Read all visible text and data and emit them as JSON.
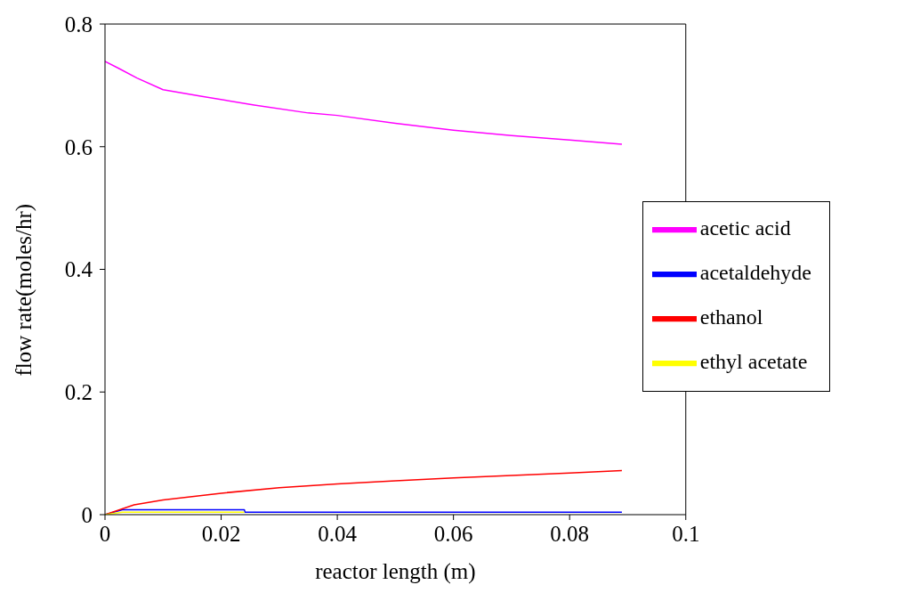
{
  "chart_data": {
    "type": "line",
    "xlabel": "reactor length (m)",
    "ylabel": "flow rate(moles/hr)",
    "xlim": [
      0,
      0.1
    ],
    "xticks": [
      0,
      0.02,
      0.04,
      0.06,
      0.08,
      0.1
    ],
    "ylim": [
      0,
      0.8
    ],
    "yticks": [
      0,
      0.2,
      0.4,
      0.6,
      0.8
    ],
    "grid": false,
    "legend": "right",
    "marker": "none",
    "line_style": "solid",
    "series": [
      {
        "name": "acetic acid",
        "color": "#ff00ff",
        "x": [
          0,
          0.0025,
          0.0055,
          0.01,
          0.0167,
          0.0257,
          0.035,
          0.04,
          0.05,
          0.06,
          0.07,
          0.08,
          0.089
        ],
        "values": [
          0.739,
          0.727,
          0.712,
          0.693,
          0.682,
          0.668,
          0.655,
          0.651,
          0.638,
          0.627,
          0.618,
          0.611,
          0.604
        ]
      },
      {
        "name": "acetaldehyde",
        "color": "#0000ff",
        "x": [
          0,
          0.003,
          0.024,
          0.0241,
          0.089
        ],
        "values": [
          0,
          0.008,
          0.008,
          0.004,
          0.004
        ]
      },
      {
        "name": "ethanol",
        "color": "#ff0000",
        "x": [
          0,
          0.005,
          0.01,
          0.02,
          0.03,
          0.04,
          0.05,
          0.06,
          0.07,
          0.08,
          0.089
        ],
        "values": [
          0,
          0.016,
          0.024,
          0.035,
          0.044,
          0.05,
          0.055,
          0.06,
          0.064,
          0.068,
          0.072
        ]
      },
      {
        "name": "ethyl acetate",
        "color": "#ffff00",
        "x": [
          0,
          0.003,
          0.024
        ],
        "values": [
          0,
          0.004,
          0.004
        ]
      }
    ]
  }
}
